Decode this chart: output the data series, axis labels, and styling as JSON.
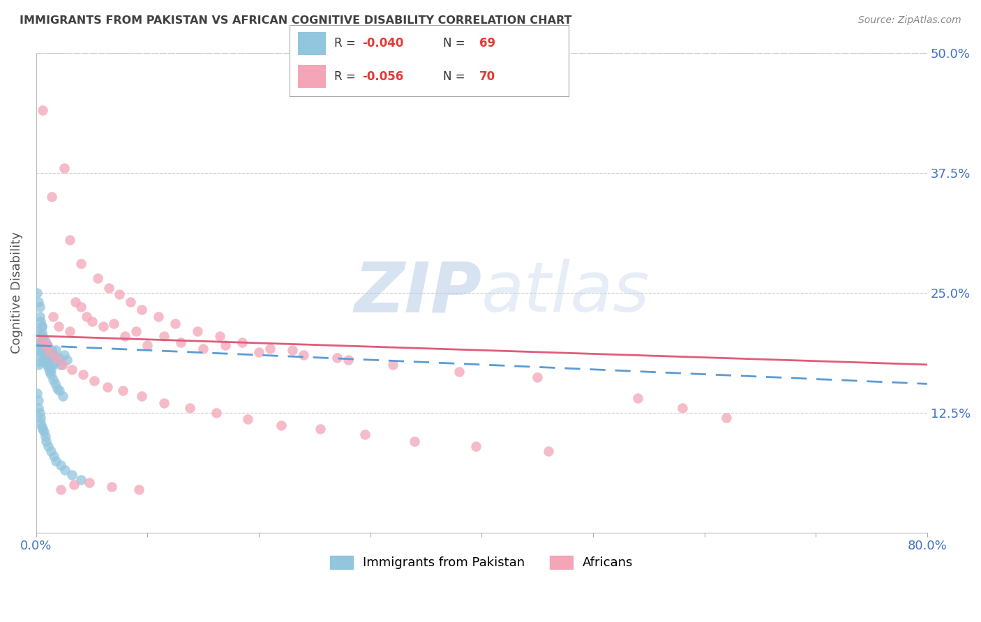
{
  "title": "IMMIGRANTS FROM PAKISTAN VS AFRICAN COGNITIVE DISABILITY CORRELATION CHART",
  "source": "Source: ZipAtlas.com",
  "ylabel": "Cognitive Disability",
  "watermark_zip": "ZIP",
  "watermark_atlas": "atlas",
  "xlim": [
    0.0,
    0.8
  ],
  "ylim": [
    0.0,
    0.5
  ],
  "yticks": [
    0.125,
    0.25,
    0.375,
    0.5
  ],
  "ytick_labels": [
    "12.5%",
    "25.0%",
    "37.5%",
    "50.0%"
  ],
  "xtick_labels": [
    "0.0%",
    "80.0%"
  ],
  "color_blue": "#92c5de",
  "color_pink": "#f4a5b8",
  "color_line_blue": "#5b9bd5",
  "color_line_pink": "#e05c7a",
  "color_axis_labels": "#4472c4",
  "color_title": "#404040",
  "color_source": "#888888",
  "pakistan_x": [
    0.001,
    0.002,
    0.002,
    0.003,
    0.003,
    0.004,
    0.004,
    0.005,
    0.005,
    0.006,
    0.006,
    0.007,
    0.007,
    0.008,
    0.008,
    0.009,
    0.01,
    0.01,
    0.011,
    0.012,
    0.013,
    0.014,
    0.015,
    0.016,
    0.017,
    0.018,
    0.02,
    0.022,
    0.025,
    0.028,
    0.001,
    0.002,
    0.003,
    0.003,
    0.004,
    0.005,
    0.005,
    0.006,
    0.007,
    0.008,
    0.009,
    0.01,
    0.011,
    0.012,
    0.013,
    0.015,
    0.017,
    0.019,
    0.021,
    0.024,
    0.001,
    0.002,
    0.002,
    0.003,
    0.004,
    0.004,
    0.005,
    0.006,
    0.007,
    0.008,
    0.009,
    0.011,
    0.013,
    0.016,
    0.018,
    0.022,
    0.026,
    0.032,
    0.04
  ],
  "pakistan_y": [
    0.19,
    0.21,
    0.175,
    0.195,
    0.185,
    0.2,
    0.178,
    0.215,
    0.188,
    0.192,
    0.205,
    0.182,
    0.196,
    0.178,
    0.2,
    0.188,
    0.175,
    0.195,
    0.18,
    0.185,
    0.17,
    0.19,
    0.175,
    0.185,
    0.178,
    0.19,
    0.182,
    0.175,
    0.185,
    0.18,
    0.25,
    0.24,
    0.235,
    0.225,
    0.22,
    0.215,
    0.208,
    0.2,
    0.195,
    0.188,
    0.182,
    0.178,
    0.172,
    0.168,
    0.165,
    0.16,
    0.155,
    0.15,
    0.148,
    0.142,
    0.145,
    0.138,
    0.13,
    0.125,
    0.12,
    0.115,
    0.11,
    0.108,
    0.105,
    0.1,
    0.095,
    0.09,
    0.085,
    0.08,
    0.075,
    0.07,
    0.065,
    0.06,
    0.055
  ],
  "africans_x": [
    0.005,
    0.01,
    0.015,
    0.02,
    0.025,
    0.03,
    0.035,
    0.04,
    0.045,
    0.05,
    0.06,
    0.07,
    0.08,
    0.09,
    0.1,
    0.115,
    0.13,
    0.15,
    0.17,
    0.2,
    0.23,
    0.27,
    0.03,
    0.04,
    0.055,
    0.065,
    0.075,
    0.085,
    0.095,
    0.11,
    0.125,
    0.145,
    0.165,
    0.185,
    0.21,
    0.24,
    0.28,
    0.32,
    0.38,
    0.45,
    0.008,
    0.012,
    0.018,
    0.024,
    0.032,
    0.042,
    0.052,
    0.064,
    0.078,
    0.095,
    0.115,
    0.138,
    0.162,
    0.19,
    0.22,
    0.255,
    0.295,
    0.34,
    0.395,
    0.46,
    0.006,
    0.014,
    0.022,
    0.034,
    0.048,
    0.068,
    0.092,
    0.54,
    0.58,
    0.62
  ],
  "africans_y": [
    0.2,
    0.195,
    0.225,
    0.215,
    0.38,
    0.21,
    0.24,
    0.235,
    0.225,
    0.22,
    0.215,
    0.218,
    0.205,
    0.21,
    0.195,
    0.205,
    0.198,
    0.192,
    0.195,
    0.188,
    0.19,
    0.182,
    0.305,
    0.28,
    0.265,
    0.255,
    0.248,
    0.24,
    0.232,
    0.225,
    0.218,
    0.21,
    0.205,
    0.198,
    0.192,
    0.185,
    0.18,
    0.175,
    0.168,
    0.162,
    0.195,
    0.188,
    0.182,
    0.175,
    0.17,
    0.165,
    0.158,
    0.152,
    0.148,
    0.142,
    0.135,
    0.13,
    0.125,
    0.118,
    0.112,
    0.108,
    0.102,
    0.095,
    0.09,
    0.085,
    0.44,
    0.35,
    0.045,
    0.05,
    0.052,
    0.048,
    0.045,
    0.14,
    0.13,
    0.12
  ]
}
